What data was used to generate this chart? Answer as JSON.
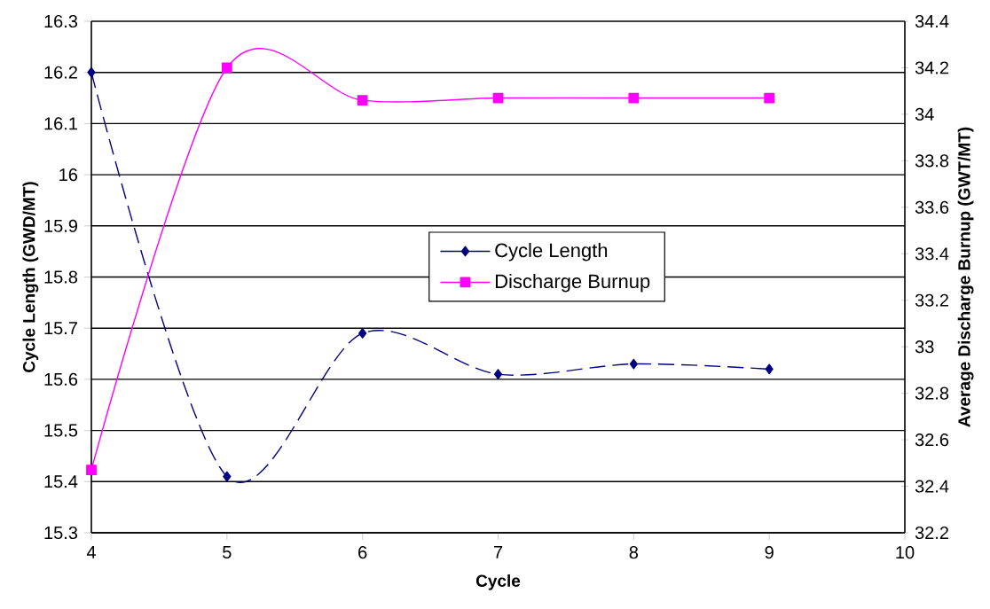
{
  "chart_data": {
    "type": "line",
    "xlabel": "Cycle",
    "ylabel": "Cycle Length  (GWD/MT)",
    "y2label": "Average Discharge Burnup (GWT/MT)",
    "x": [
      4,
      5,
      6,
      7,
      8,
      9
    ],
    "series": [
      {
        "name": "Cycle Length",
        "color": "#000080",
        "values": [
          16.2,
          15.41,
          15.69,
          15.61,
          15.63,
          15.62
        ],
        "marker": "diamond",
        "line_style": "dashed"
      },
      {
        "name": "Discharge Burnup",
        "color": "#ff00ff",
        "values": [
          32.47,
          34.2,
          34.06,
          34.07,
          34.07,
          34.07
        ],
        "marker": "square",
        "line_style": "solid",
        "axis": "y2"
      }
    ],
    "xlim": [
      4,
      10
    ],
    "xticks": [
      4,
      5,
      6,
      7,
      8,
      9,
      10
    ],
    "ylim": [
      15.3,
      16.3
    ],
    "yticks": [
      15.3,
      15.4,
      15.5,
      15.6,
      15.7,
      15.8,
      15.9,
      16,
      16.1,
      16.2,
      16.3
    ],
    "y2lim": [
      32.2,
      34.4
    ],
    "y2ticks": [
      32.2,
      32.4,
      32.6,
      32.8,
      33,
      33.2,
      33.4,
      33.6,
      33.8,
      34,
      34.2,
      34.4
    ],
    "grid": "y",
    "legend": "center"
  }
}
